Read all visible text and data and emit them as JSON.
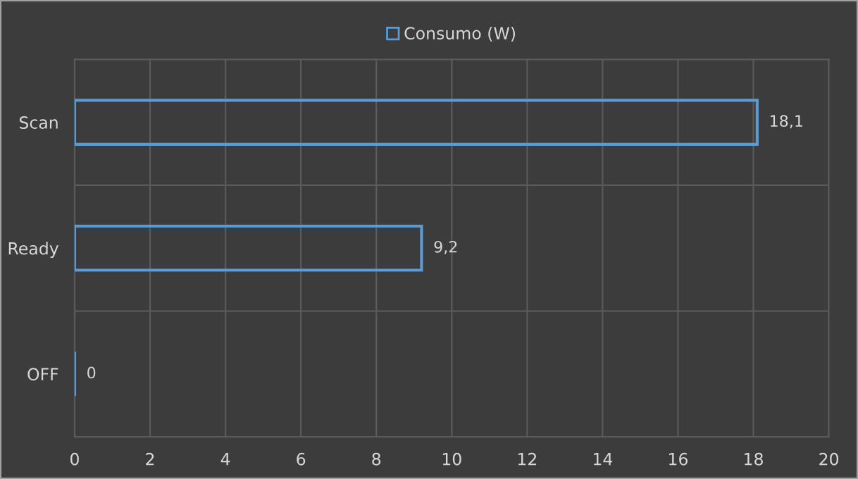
{
  "chart_data": {
    "type": "bar",
    "orientation": "horizontal",
    "categories": [
      "Scan",
      "Ready",
      "OFF"
    ],
    "series": [
      {
        "name": "Consumo (W)",
        "color": "#5b9bd5",
        "values": [
          18.1,
          9.2,
          0
        ],
        "value_labels": [
          "18,1",
          "9,2",
          "0"
        ]
      }
    ],
    "xlim": [
      0,
      20
    ],
    "xticks": [
      0,
      2,
      4,
      6,
      8,
      10,
      12,
      14,
      16,
      18,
      20
    ],
    "grid": true,
    "legend": "top"
  }
}
